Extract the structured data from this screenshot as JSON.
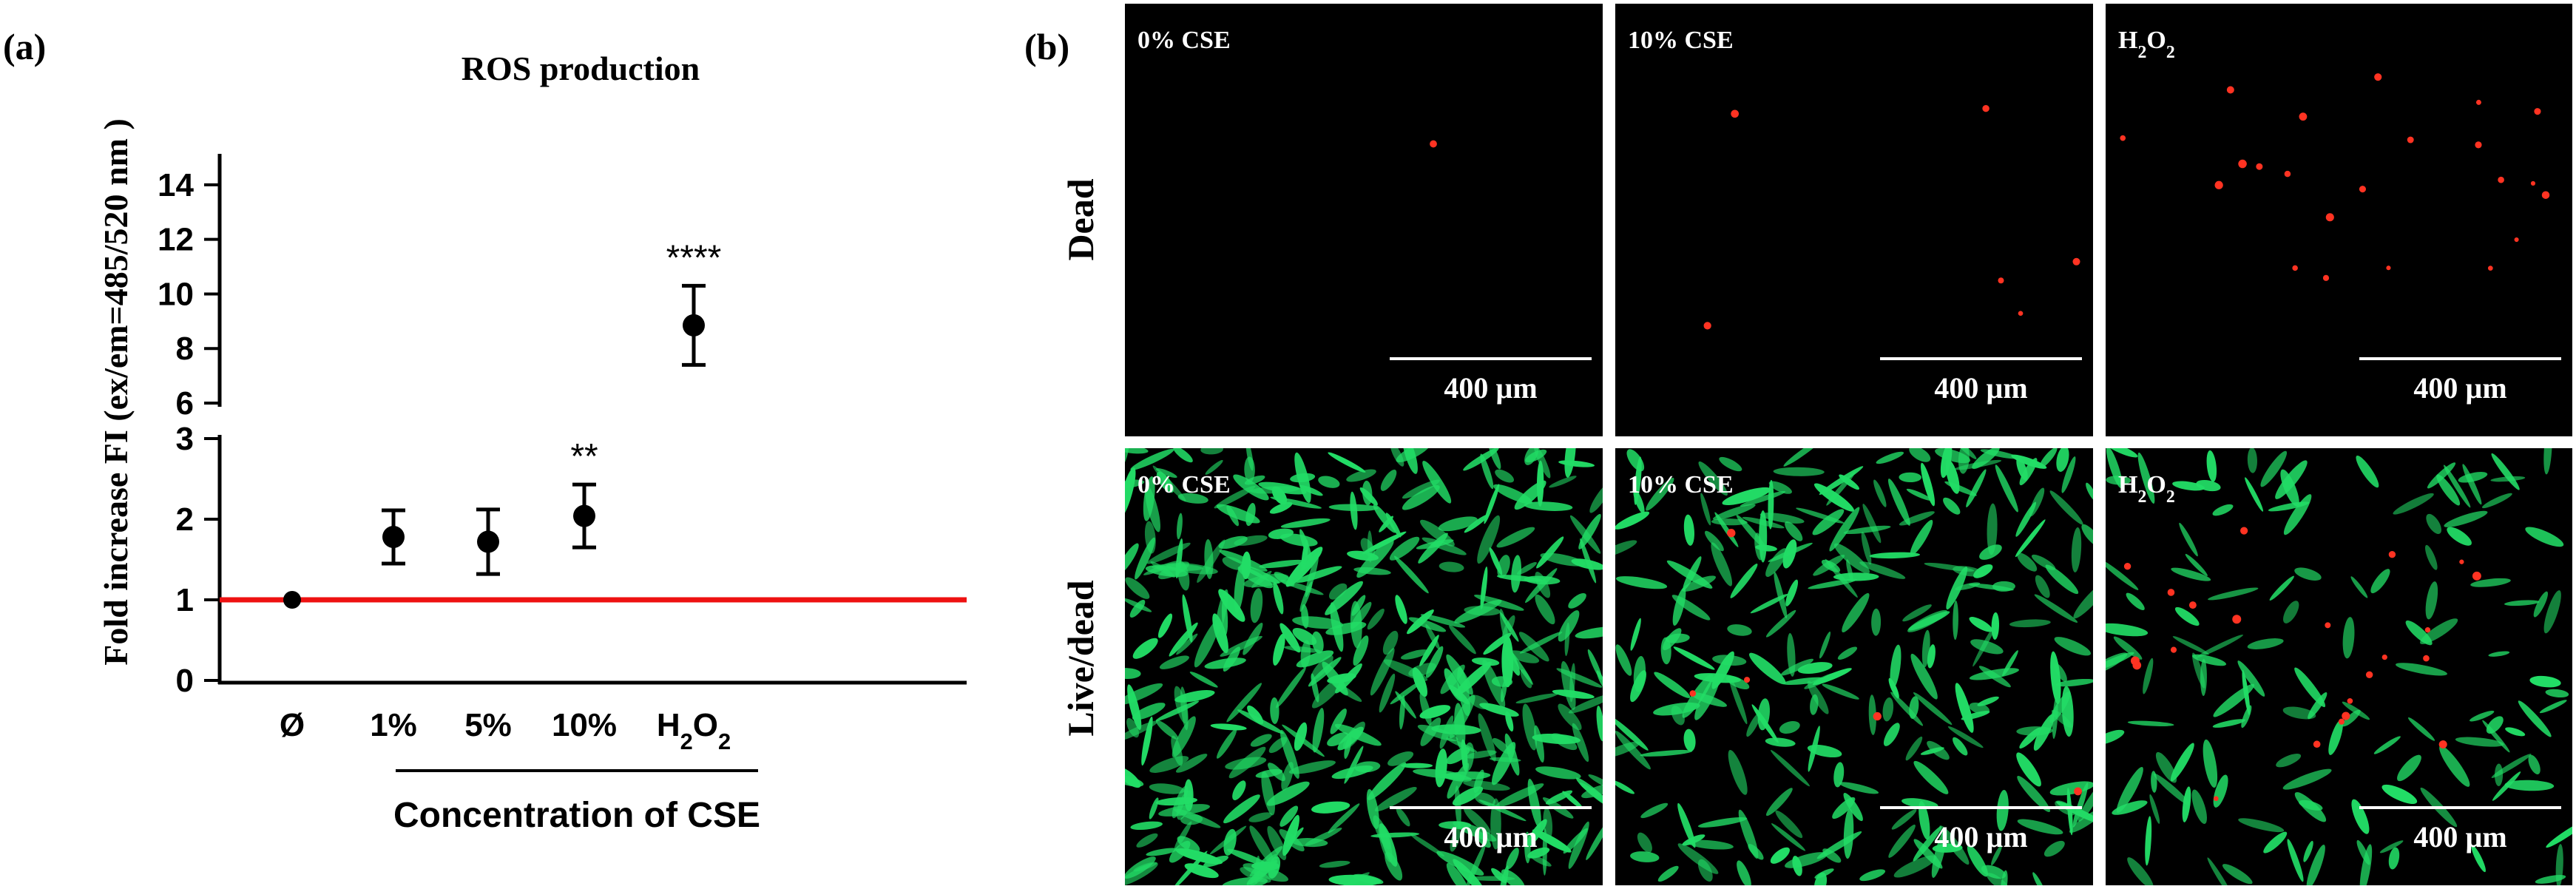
{
  "panel_a": {
    "label": "(a)",
    "chart_data": {
      "type": "scatter",
      "title": "ROS production",
      "ylabel": "Fold increase FI (ex/em=485/520 nm )",
      "xlabel": "Concentration of CSE",
      "categories": [
        "Ø",
        "1%",
        "5%",
        "10%",
        "H2O2"
      ],
      "values": [
        1.0,
        1.78,
        1.72,
        2.04,
        8.85
      ],
      "error": [
        0.0,
        0.33,
        0.4,
        0.39,
        1.45
      ],
      "significance": [
        "",
        "",
        "",
        "**",
        "****"
      ],
      "reference_line": {
        "y": 1,
        "color": "#ee1111"
      },
      "y_axis_lower": {
        "range": [
          0,
          3
        ],
        "ticks": [
          0,
          1,
          2,
          3
        ]
      },
      "y_axis_upper": {
        "range": [
          6,
          15
        ],
        "ticks": [
          6,
          8,
          10,
          12,
          14
        ]
      },
      "grid": false,
      "legend": "none"
    }
  },
  "panel_b": {
    "label": "(b)",
    "row_labels": [
      "Dead",
      "Live/dead"
    ],
    "scale_bar": "400 µm",
    "images": [
      {
        "row": "Dead",
        "title": "0% CSE",
        "red_cells": 1,
        "green_cells": 0
      },
      {
        "row": "Dead",
        "title": "10% CSE",
        "red_cells": 6,
        "green_cells": 0
      },
      {
        "row": "Dead",
        "title": "H2O2",
        "red_cells": 22,
        "green_cells": 0
      },
      {
        "row": "Live/dead",
        "title": "0% CSE",
        "red_cells": 0,
        "green_cells": 420
      },
      {
        "row": "Live/dead",
        "title": "10% CSE",
        "red_cells": 5,
        "green_cells": 260
      },
      {
        "row": "Live/dead",
        "title": "H2O2",
        "red_cells": 22,
        "green_cells": 130
      }
    ],
    "colors": {
      "live": "#22dd66",
      "dead": "#ff3322",
      "background": "#000000"
    }
  }
}
